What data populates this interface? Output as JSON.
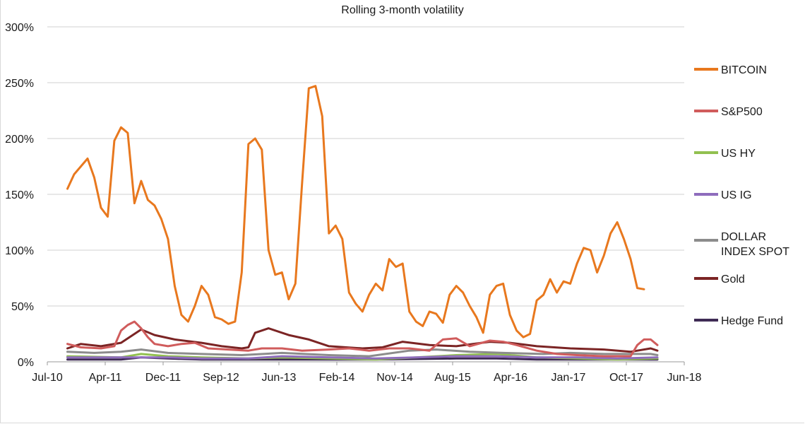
{
  "chart_data": {
    "type": "line",
    "title": "Rolling 3-month volatility",
    "xlabel": "",
    "ylabel": "",
    "ylim": [
      0,
      3.0
    ],
    "y_ticks": [
      "0%",
      "50%",
      "100%",
      "150%",
      "200%",
      "250%",
      "300%"
    ],
    "x_tick_labels": [
      "Jul-10",
      "Apr-11",
      "Dec-11",
      "Sep-12",
      "Jun-13",
      "Feb-14",
      "Nov-14",
      "Aug-15",
      "Apr-16",
      "Jan-17",
      "Oct-17",
      "Jun-18"
    ],
    "legend_position": "right",
    "grid": "horizontal",
    "series": [
      {
        "name": "BITCOIN",
        "color": "#e8781e",
        "width": 3,
        "points": [
          [
            "2010-10",
            1.55
          ],
          [
            "2010-11",
            1.68
          ],
          [
            "2011-01",
            1.82
          ],
          [
            "2011-02",
            1.65
          ],
          [
            "2011-03",
            1.38
          ],
          [
            "2011-04",
            1.3
          ],
          [
            "2011-05",
            1.98
          ],
          [
            "2011-06",
            2.1
          ],
          [
            "2011-07",
            2.05
          ],
          [
            "2011-08",
            1.42
          ],
          [
            "2011-09",
            1.62
          ],
          [
            "2011-10",
            1.45
          ],
          [
            "2011-11",
            1.4
          ],
          [
            "2011-12",
            1.28
          ],
          [
            "2012-01",
            1.1
          ],
          [
            "2012-02",
            0.68
          ],
          [
            "2012-03",
            0.42
          ],
          [
            "2012-04",
            0.36
          ],
          [
            "2012-05",
            0.5
          ],
          [
            "2012-06",
            0.68
          ],
          [
            "2012-07",
            0.6
          ],
          [
            "2012-08",
            0.4
          ],
          [
            "2012-09",
            0.38
          ],
          [
            "2012-10",
            0.34
          ],
          [
            "2012-11",
            0.36
          ],
          [
            "2012-12",
            0.8
          ],
          [
            "2013-01",
            1.95
          ],
          [
            "2013-02",
            2.0
          ],
          [
            "2013-03",
            1.9
          ],
          [
            "2013-04",
            1.0
          ],
          [
            "2013-05",
            0.78
          ],
          [
            "2013-06",
            0.8
          ],
          [
            "2013-07",
            0.56
          ],
          [
            "2013-08",
            0.7
          ],
          [
            "2013-09",
            1.6
          ],
          [
            "2013-10",
            2.45
          ],
          [
            "2013-11",
            2.47
          ],
          [
            "2013-12",
            2.2
          ],
          [
            "2014-01",
            1.15
          ],
          [
            "2014-02",
            1.22
          ],
          [
            "2014-03",
            1.1
          ],
          [
            "2014-04",
            0.62
          ],
          [
            "2014-05",
            0.52
          ],
          [
            "2014-06",
            0.45
          ],
          [
            "2014-07",
            0.6
          ],
          [
            "2014-08",
            0.7
          ],
          [
            "2014-09",
            0.64
          ],
          [
            "2014-10",
            0.92
          ],
          [
            "2014-11",
            0.85
          ],
          [
            "2014-12",
            0.88
          ],
          [
            "2015-01",
            0.45
          ],
          [
            "2015-02",
            0.36
          ],
          [
            "2015-03",
            0.32
          ],
          [
            "2015-04",
            0.45
          ],
          [
            "2015-05",
            0.43
          ],
          [
            "2015-06",
            0.35
          ],
          [
            "2015-07",
            0.6
          ],
          [
            "2015-08",
            0.68
          ],
          [
            "2015-09",
            0.62
          ],
          [
            "2015-10",
            0.5
          ],
          [
            "2015-11",
            0.4
          ],
          [
            "2015-12",
            0.26
          ],
          [
            "2016-01",
            0.6
          ],
          [
            "2016-02",
            0.68
          ],
          [
            "2016-03",
            0.7
          ],
          [
            "2016-04",
            0.42
          ],
          [
            "2016-05",
            0.28
          ],
          [
            "2016-06",
            0.22
          ],
          [
            "2016-07",
            0.25
          ],
          [
            "2016-08",
            0.55
          ],
          [
            "2016-09",
            0.6
          ],
          [
            "2016-10",
            0.74
          ],
          [
            "2016-11",
            0.62
          ],
          [
            "2016-12",
            0.72
          ],
          [
            "2017-01",
            0.7
          ],
          [
            "2017-02",
            0.88
          ],
          [
            "2017-03",
            1.02
          ],
          [
            "2017-04",
            1.0
          ],
          [
            "2017-05",
            0.8
          ],
          [
            "2017-06",
            0.95
          ],
          [
            "2017-07",
            1.15
          ],
          [
            "2017-08",
            1.25
          ],
          [
            "2017-09",
            1.1
          ],
          [
            "2017-10",
            0.92
          ],
          [
            "2017-11",
            0.66
          ],
          [
            "2017-12",
            0.65
          ]
        ]
      },
      {
        "name": "S&P500",
        "color": "#d05c5c",
        "width": 3,
        "points": [
          [
            "2010-10",
            0.16
          ],
          [
            "2010-12",
            0.13
          ],
          [
            "2011-03",
            0.12
          ],
          [
            "2011-05",
            0.14
          ],
          [
            "2011-06",
            0.28
          ],
          [
            "2011-07",
            0.33
          ],
          [
            "2011-08",
            0.36
          ],
          [
            "2011-09",
            0.3
          ],
          [
            "2011-10",
            0.22
          ],
          [
            "2011-11",
            0.16
          ],
          [
            "2012-01",
            0.14
          ],
          [
            "2012-03",
            0.16
          ],
          [
            "2012-05",
            0.17
          ],
          [
            "2012-07",
            0.12
          ],
          [
            "2012-10",
            0.11
          ],
          [
            "2013-01",
            0.1
          ],
          [
            "2013-03",
            0.12
          ],
          [
            "2013-06",
            0.12
          ],
          [
            "2013-09",
            0.1
          ],
          [
            "2014-01",
            0.11
          ],
          [
            "2014-04",
            0.12
          ],
          [
            "2014-07",
            0.1
          ],
          [
            "2014-10",
            0.12
          ],
          [
            "2015-01",
            0.12
          ],
          [
            "2015-04",
            0.1
          ],
          [
            "2015-06",
            0.2
          ],
          [
            "2015-08",
            0.21
          ],
          [
            "2015-10",
            0.14
          ],
          [
            "2016-01",
            0.19
          ],
          [
            "2016-03",
            0.18
          ],
          [
            "2016-05",
            0.15
          ],
          [
            "2016-08",
            0.1
          ],
          [
            "2016-11",
            0.07
          ],
          [
            "2017-02",
            0.06
          ],
          [
            "2017-06",
            0.05
          ],
          [
            "2017-10",
            0.05
          ],
          [
            "2017-11",
            0.15
          ],
          [
            "2017-12",
            0.2
          ],
          [
            "2018-01",
            0.2
          ],
          [
            "2018-02",
            0.15
          ]
        ]
      },
      {
        "name": "US HY",
        "color": "#92c050",
        "width": 3,
        "points": [
          [
            "2010-10",
            0.05
          ],
          [
            "2011-06",
            0.04
          ],
          [
            "2011-09",
            0.07
          ],
          [
            "2012-01",
            0.05
          ],
          [
            "2012-06",
            0.04
          ],
          [
            "2013-01",
            0.03
          ],
          [
            "2013-06",
            0.04
          ],
          [
            "2014-01",
            0.03
          ],
          [
            "2014-08",
            0.02
          ],
          [
            "2015-02",
            0.04
          ],
          [
            "2015-08",
            0.06
          ],
          [
            "2016-02",
            0.07
          ],
          [
            "2016-08",
            0.04
          ],
          [
            "2017-02",
            0.03
          ],
          [
            "2017-08",
            0.02
          ],
          [
            "2018-02",
            0.03
          ]
        ]
      },
      {
        "name": "US IG",
        "color": "#8e6cbc",
        "width": 3,
        "points": [
          [
            "2010-10",
            0.04
          ],
          [
            "2011-06",
            0.04
          ],
          [
            "2012-01",
            0.04
          ],
          [
            "2012-06",
            0.03
          ],
          [
            "2013-01",
            0.03
          ],
          [
            "2013-06",
            0.05
          ],
          [
            "2014-01",
            0.04
          ],
          [
            "2014-08",
            0.03
          ],
          [
            "2015-02",
            0.04
          ],
          [
            "2015-08",
            0.05
          ],
          [
            "2016-02",
            0.05
          ],
          [
            "2016-08",
            0.04
          ],
          [
            "2017-02",
            0.04
          ],
          [
            "2017-08",
            0.03
          ],
          [
            "2018-02",
            0.04
          ]
        ]
      },
      {
        "name": "DOLLAR INDEX SPOT",
        "color": "#8c8c8c",
        "width": 3,
        "points": [
          [
            "2010-10",
            0.09
          ],
          [
            "2011-02",
            0.08
          ],
          [
            "2011-06",
            0.09
          ],
          [
            "2011-09",
            0.11
          ],
          [
            "2012-01",
            0.08
          ],
          [
            "2012-06",
            0.07
          ],
          [
            "2012-12",
            0.06
          ],
          [
            "2013-06",
            0.08
          ],
          [
            "2014-01",
            0.06
          ],
          [
            "2014-07",
            0.05
          ],
          [
            "2015-01",
            0.1
          ],
          [
            "2015-05",
            0.11
          ],
          [
            "2015-10",
            0.09
          ],
          [
            "2016-03",
            0.08
          ],
          [
            "2016-09",
            0.07
          ],
          [
            "2017-01",
            0.08
          ],
          [
            "2017-06",
            0.07
          ],
          [
            "2018-01",
            0.07
          ],
          [
            "2018-02",
            0.06
          ]
        ]
      },
      {
        "name": "Gold",
        "color": "#7b2424",
        "width": 3,
        "points": [
          [
            "2010-10",
            0.12
          ],
          [
            "2010-12",
            0.16
          ],
          [
            "2011-03",
            0.14
          ],
          [
            "2011-06",
            0.17
          ],
          [
            "2011-09",
            0.29
          ],
          [
            "2011-11",
            0.24
          ],
          [
            "2012-02",
            0.2
          ],
          [
            "2012-06",
            0.17
          ],
          [
            "2012-09",
            0.14
          ],
          [
            "2012-12",
            0.12
          ],
          [
            "2013-01",
            0.13
          ],
          [
            "2013-02",
            0.26
          ],
          [
            "2013-04",
            0.3
          ],
          [
            "2013-07",
            0.24
          ],
          [
            "2013-10",
            0.2
          ],
          [
            "2014-01",
            0.14
          ],
          [
            "2014-06",
            0.12
          ],
          [
            "2014-09",
            0.13
          ],
          [
            "2014-12",
            0.18
          ],
          [
            "2015-04",
            0.15
          ],
          [
            "2015-08",
            0.14
          ],
          [
            "2016-01",
            0.18
          ],
          [
            "2016-04",
            0.17
          ],
          [
            "2016-08",
            0.14
          ],
          [
            "2017-01",
            0.12
          ],
          [
            "2017-06",
            0.11
          ],
          [
            "2017-10",
            0.09
          ],
          [
            "2018-01",
            0.12
          ],
          [
            "2018-02",
            0.1
          ]
        ]
      },
      {
        "name": "Hedge Fund",
        "color": "#3f2b55",
        "width": 3,
        "points": [
          [
            "2010-10",
            0.02
          ],
          [
            "2011-06",
            0.02
          ],
          [
            "2011-09",
            0.04
          ],
          [
            "2012-01",
            0.03
          ],
          [
            "2012-06",
            0.02
          ],
          [
            "2013-06",
            0.02
          ],
          [
            "2014-01",
            0.02
          ],
          [
            "2014-08",
            0.02
          ],
          [
            "2015-08",
            0.03
          ],
          [
            "2016-02",
            0.03
          ],
          [
            "2016-08",
            0.02
          ],
          [
            "2017-06",
            0.02
          ],
          [
            "2018-02",
            0.02
          ]
        ]
      }
    ]
  }
}
